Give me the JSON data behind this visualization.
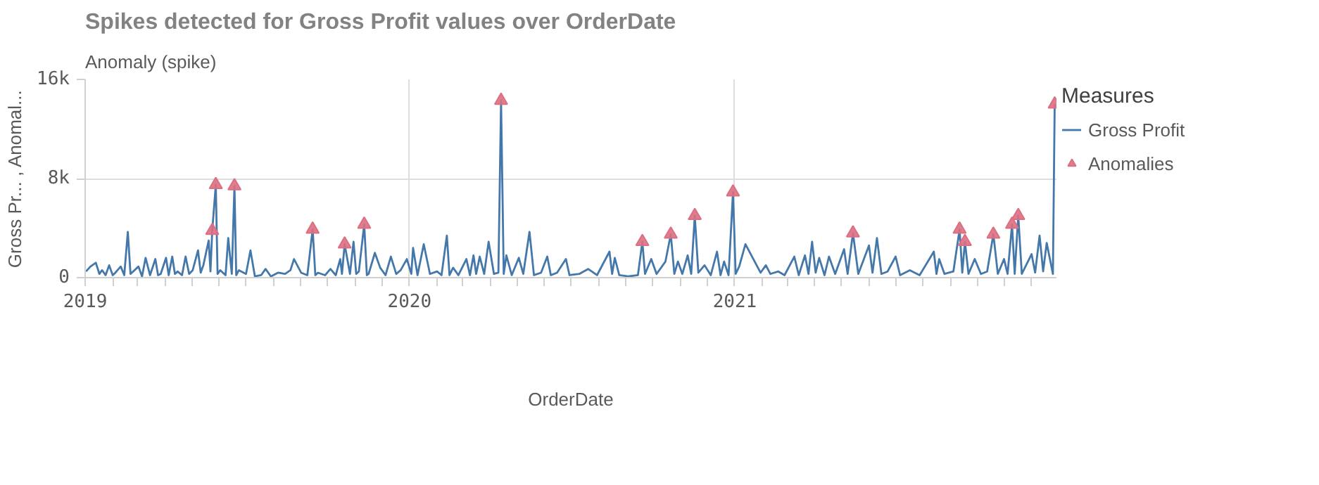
{
  "chart_data": {
    "type": "line",
    "title": "Spikes detected for Gross Profit values over OrderDate",
    "subtitle": "Anomaly (spike)",
    "xlabel": "OrderDate",
    "ylabel": "Gross Pr... , Anomal...",
    "legend_title": "Measures",
    "legend": "right",
    "grid": true,
    "xlim": [
      "2019-01-01",
      "2021-12-29"
    ],
    "ylim": [
      0,
      16000
    ],
    "yticks": [
      {
        "value": 0,
        "label": "0"
      },
      {
        "value": 8000,
        "label": "8k"
      },
      {
        "value": 16000,
        "label": "16k"
      }
    ],
    "xticks": [
      {
        "value": "2019-01-01",
        "label": "2019"
      },
      {
        "value": "2019-02-01",
        "label": null
      },
      {
        "value": "2019-03-01",
        "label": null
      },
      {
        "value": "2019-04-01",
        "label": null
      },
      {
        "value": "2019-05-01",
        "label": null
      },
      {
        "value": "2019-06-01",
        "label": null
      },
      {
        "value": "2019-07-01",
        "label": null
      },
      {
        "value": "2019-08-01",
        "label": null
      },
      {
        "value": "2019-09-01",
        "label": null
      },
      {
        "value": "2019-10-01",
        "label": null
      },
      {
        "value": "2019-11-01",
        "label": null
      },
      {
        "value": "2019-12-01",
        "label": null
      },
      {
        "value": "2020-01-01",
        "label": "2020"
      },
      {
        "value": "2020-02-01",
        "label": null
      },
      {
        "value": "2020-03-01",
        "label": null
      },
      {
        "value": "2020-04-01",
        "label": null
      },
      {
        "value": "2020-05-01",
        "label": null
      },
      {
        "value": "2020-06-01",
        "label": null
      },
      {
        "value": "2020-07-01",
        "label": null
      },
      {
        "value": "2020-08-01",
        "label": null
      },
      {
        "value": "2020-09-01",
        "label": null
      },
      {
        "value": "2020-10-01",
        "label": null
      },
      {
        "value": "2020-11-01",
        "label": null
      },
      {
        "value": "2020-12-01",
        "label": null
      },
      {
        "value": "2021-01-01",
        "label": "2021"
      },
      {
        "value": "2021-02-01",
        "label": null
      },
      {
        "value": "2021-03-01",
        "label": null
      },
      {
        "value": "2021-04-01",
        "label": null
      },
      {
        "value": "2021-05-01",
        "label": null
      },
      {
        "value": "2021-06-01",
        "label": null
      },
      {
        "value": "2021-07-01",
        "label": null
      },
      {
        "value": "2021-08-01",
        "label": null
      },
      {
        "value": "2021-09-01",
        "label": null
      },
      {
        "value": "2021-10-01",
        "label": null
      },
      {
        "value": "2021-11-01",
        "label": null
      },
      {
        "value": "2021-12-01",
        "label": null
      }
    ],
    "series": [
      {
        "name": "Gross Profit",
        "color": "#4477aa",
        "line_style": "solid",
        "x": [
          "2019-01-02",
          "2019-01-07",
          "2019-01-13",
          "2019-01-17",
          "2019-01-20",
          "2019-01-24",
          "2019-01-28",
          "2019-02-01",
          "2019-02-04",
          "2019-02-10",
          "2019-02-14",
          "2019-02-18",
          "2019-02-21",
          "2019-02-24",
          "2019-03-02",
          "2019-03-06",
          "2019-03-10",
          "2019-03-15",
          "2019-03-21",
          "2019-03-24",
          "2019-03-27",
          "2019-04-02",
          "2019-04-05",
          "2019-04-09",
          "2019-04-12",
          "2019-04-15",
          "2019-04-20",
          "2019-04-24",
          "2019-04-28",
          "2019-05-02",
          "2019-05-08",
          "2019-05-11",
          "2019-05-14",
          "2019-05-20",
          "2019-05-22",
          "2019-05-24",
          "2019-05-28",
          "2019-05-30",
          "2019-06-02",
          "2019-06-08",
          "2019-06-11",
          "2019-06-15",
          "2019-06-18",
          "2019-06-20",
          "2019-06-23",
          "2019-07-01",
          "2019-07-06",
          "2019-07-11",
          "2019-07-18",
          "2019-07-23",
          "2019-07-29",
          "2019-08-06",
          "2019-08-14",
          "2019-08-20",
          "2019-08-24",
          "2019-09-01",
          "2019-09-08",
          "2019-09-14",
          "2019-09-17",
          "2019-09-20",
          "2019-09-28",
          "2019-10-04",
          "2019-10-10",
          "2019-10-15",
          "2019-10-17",
          "2019-10-20",
          "2019-10-26",
          "2019-10-30",
          "2019-11-02",
          "2019-11-05",
          "2019-11-11",
          "2019-11-14",
          "2019-11-16",
          "2019-11-23",
          "2019-11-29",
          "2019-12-05",
          "2019-12-11",
          "2019-12-17",
          "2019-12-22",
          "2019-12-29",
          "2020-01-03",
          "2020-01-05",
          "2020-01-10",
          "2020-01-17",
          "2020-01-24",
          "2020-02-01",
          "2020-02-06",
          "2020-02-12",
          "2020-02-15",
          "2020-02-19",
          "2020-02-25",
          "2020-03-05",
          "2020-03-09",
          "2020-03-13",
          "2020-03-16",
          "2020-03-20",
          "2020-03-25",
          "2020-03-30",
          "2020-04-05",
          "2020-04-10",
          "2020-04-13",
          "2020-04-16",
          "2020-04-19",
          "2020-04-25",
          "2020-05-03",
          "2020-05-08",
          "2020-05-15",
          "2020-05-20",
          "2020-05-28",
          "2020-06-04",
          "2020-06-08",
          "2020-06-15",
          "2020-06-25",
          "2020-06-29",
          "2020-07-10",
          "2020-07-20",
          "2020-07-30",
          "2020-08-13",
          "2020-08-16",
          "2020-08-19",
          "2020-08-24",
          "2020-09-03",
          "2020-09-14",
          "2020-09-19",
          "2020-09-22",
          "2020-09-29",
          "2020-10-05",
          "2020-10-15",
          "2020-10-21",
          "2020-10-25",
          "2020-10-29",
          "2020-11-03",
          "2020-11-09",
          "2020-11-13",
          "2020-11-17",
          "2020-11-21",
          "2020-11-28",
          "2020-12-05",
          "2020-12-12",
          "2020-12-16",
          "2020-12-20",
          "2020-12-25",
          "2020-12-30",
          "2021-01-02",
          "2021-01-06",
          "2021-01-13",
          "2021-01-30",
          "2021-02-05",
          "2021-02-10",
          "2021-02-19",
          "2021-02-26",
          "2021-03-09",
          "2021-03-14",
          "2021-03-21",
          "2021-03-25",
          "2021-03-29",
          "2021-04-02",
          "2021-04-06",
          "2021-04-12",
          "2021-04-17",
          "2021-04-24",
          "2021-05-04",
          "2021-05-08",
          "2021-05-14",
          "2021-05-20",
          "2021-06-01",
          "2021-06-05",
          "2021-06-10",
          "2021-06-15",
          "2021-06-22",
          "2021-07-01",
          "2021-07-06",
          "2021-07-17",
          "2021-07-28",
          "2021-08-13",
          "2021-08-16",
          "2021-08-19",
          "2021-08-25",
          "2021-09-04",
          "2021-09-11",
          "2021-09-14",
          "2021-09-17",
          "2021-09-21",
          "2021-09-28",
          "2021-10-05",
          "2021-10-12",
          "2021-10-19",
          "2021-10-24",
          "2021-10-31",
          "2021-11-04",
          "2021-11-09",
          "2021-11-12",
          "2021-11-16",
          "2021-11-20",
          "2021-12-01",
          "2021-12-05",
          "2021-12-10",
          "2021-12-14",
          "2021-12-18",
          "2021-12-25",
          "2021-12-27"
        ],
        "values": [
          500,
          900,
          1200,
          300,
          600,
          200,
          1000,
          200,
          400,
          900,
          200,
          3700,
          300,
          500,
          900,
          100,
          1600,
          200,
          1500,
          200,
          300,
          1600,
          200,
          1700,
          300,
          500,
          200,
          1700,
          300,
          600,
          2200,
          400,
          1000,
          3000,
          500,
          3800,
          7500,
          300,
          600,
          200,
          3200,
          300,
          7400,
          200,
          600,
          300,
          2200,
          100,
          200,
          700,
          100,
          400,
          300,
          600,
          1500,
          400,
          200,
          3900,
          200,
          400,
          200,
          700,
          200,
          1500,
          300,
          2700,
          300,
          2900,
          300,
          500,
          4300,
          200,
          300,
          2000,
          800,
          200,
          1700,
          300,
          600,
          1500,
          300,
          2400,
          200,
          2700,
          300,
          500,
          200,
          3400,
          200,
          800,
          200,
          1500,
          200,
          1800,
          300,
          1700,
          300,
          2900,
          300,
          400,
          14300,
          300,
          1800,
          200,
          1600,
          300,
          3700,
          200,
          400,
          1700,
          200,
          400,
          1500,
          200,
          300,
          700,
          200,
          2100,
          300,
          1600,
          200,
          100,
          200,
          2900,
          300,
          1500,
          300,
          1300,
          3500,
          300,
          1300,
          300,
          1800,
          300,
          5000,
          400,
          1000,
          200,
          2100,
          200,
          1300,
          200,
          6900,
          300,
          900,
          2700,
          400,
          1000,
          300,
          500,
          200,
          1700,
          200,
          1800,
          300,
          2900,
          400,
          1600,
          200,
          1700,
          300,
          2300,
          300,
          3600,
          300,
          2600,
          400,
          3200,
          300,
          500,
          1700,
          200,
          600,
          200,
          2100,
          300,
          1500,
          300,
          500,
          3900,
          400,
          2900,
          300,
          1500,
          300,
          500,
          3500,
          300,
          1500,
          300,
          4300,
          300,
          5000,
          300,
          1900,
          400,
          3400,
          500,
          2800,
          300,
          14000
        ]
      },
      {
        "name": "Anomalies",
        "type": "scatter",
        "color": "#dc6f82",
        "marker": "triangle",
        "x": [
          "2019-05-24",
          "2019-05-28",
          "2019-06-18",
          "2019-09-14",
          "2019-10-20",
          "2019-11-11",
          "2020-04-13",
          "2020-09-19",
          "2020-10-21",
          "2020-11-17",
          "2020-12-30",
          "2021-05-14",
          "2021-09-11",
          "2021-09-17",
          "2021-10-19",
          "2021-11-09",
          "2021-11-16",
          "2021-12-27"
        ],
        "values": [
          3800,
          7500,
          7400,
          3900,
          2700,
          4300,
          14300,
          2900,
          3500,
          5000,
          6900,
          3600,
          3900,
          2900,
          3500,
          4300,
          5000,
          14000
        ]
      }
    ]
  }
}
